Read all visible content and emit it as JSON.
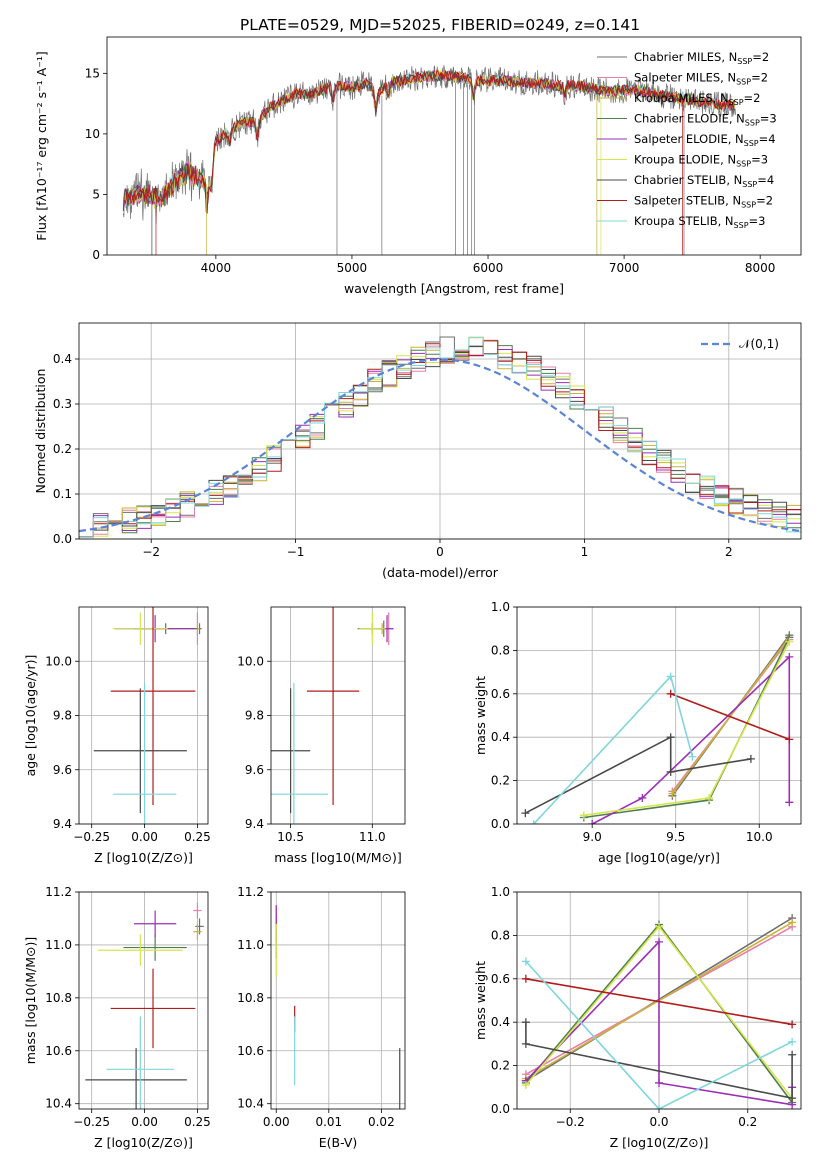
{
  "colors": {
    "Chabrier MILES": "#6f6f6f",
    "Salpeter MILES": "#e87fa8",
    "Kroupa MILES": "#c8b23a",
    "Chabrier ELODIE": "#4f7f4f",
    "Salpeter ELODIE": "#9b2fb5",
    "Kroupa ELODIE": "#d4e64c",
    "Chabrier STELIB": "#4a4a4a",
    "Salpeter STELIB": "#b01d1d",
    "Kroupa STELIB": "#7fd6dc",
    "gaussian": "#5b84d6",
    "orange": "#e0782a"
  },
  "chart_data": [
    {
      "id": "spectrum",
      "type": "line",
      "title": "PLATE=0529, MJD=52025, FIBERID=0249, z=0.141",
      "xlabel": "wavelength [Angstrom, rest frame]",
      "ylabel": "Flux [fλ10⁻¹⁷ erg cm⁻² s⁻¹ A⁻¹]",
      "xlim": [
        3200,
        8300
      ],
      "ylim": [
        0,
        18
      ],
      "xticks": [
        4000,
        5000,
        6000,
        7000,
        8000
      ],
      "yticks": [
        0,
        5,
        10,
        15
      ],
      "grid": false,
      "legend_position": "top-right",
      "legend": [
        {
          "name": "Chabrier MILES",
          "n": "2"
        },
        {
          "name": "Salpeter MILES",
          "n": "2"
        },
        {
          "name": "Kroupa MILES",
          "n": "2"
        },
        {
          "name": "Chabrier ELODIE",
          "n": "3"
        },
        {
          "name": "Salpeter ELODIE",
          "n": "4"
        },
        {
          "name": "Kroupa ELODIE",
          "n": "3"
        },
        {
          "name": "Chabrier STELIB",
          "n": "4"
        },
        {
          "name": "Salpeter STELIB",
          "n": "2"
        },
        {
          "name": "Kroupa STELIB",
          "n": "3"
        }
      ],
      "continuum": [
        [
          3300,
          4.6
        ],
        [
          3400,
          4.9
        ],
        [
          3500,
          5.0
        ],
        [
          3600,
          4.7
        ],
        [
          3700,
          6.0
        ],
        [
          3800,
          6.9
        ],
        [
          3900,
          6.2
        ],
        [
          3950,
          6.5
        ],
        [
          4000,
          9.4
        ],
        [
          4100,
          10.3
        ],
        [
          4200,
          10.9
        ],
        [
          4300,
          11.0
        ],
        [
          4400,
          12.2
        ],
        [
          4500,
          12.8
        ],
        [
          4600,
          13.3
        ],
        [
          4700,
          13.3
        ],
        [
          4800,
          13.7
        ],
        [
          4900,
          14.0
        ],
        [
          5000,
          13.8
        ],
        [
          5100,
          14.2
        ],
        [
          5200,
          13.5
        ],
        [
          5300,
          14.3
        ],
        [
          5400,
          14.5
        ],
        [
          5500,
          14.7
        ],
        [
          5600,
          14.8
        ],
        [
          5700,
          14.8
        ],
        [
          5800,
          14.7
        ],
        [
          5900,
          14.4
        ],
        [
          6000,
          14.4
        ],
        [
          6100,
          14.4
        ],
        [
          6200,
          14.3
        ],
        [
          6300,
          14.2
        ],
        [
          6400,
          14.2
        ],
        [
          6500,
          14.0
        ],
        [
          6600,
          14.0
        ],
        [
          6700,
          13.9
        ],
        [
          6800,
          13.7
        ],
        [
          6900,
          13.5
        ],
        [
          7000,
          13.6
        ],
        [
          7100,
          13.6
        ],
        [
          7200,
          13.4
        ],
        [
          7300,
          13.1
        ],
        [
          7400,
          12.9
        ],
        [
          7500,
          12.8
        ],
        [
          7600,
          12.6
        ],
        [
          7700,
          12.4
        ],
        [
          7800,
          12.4
        ]
      ]
    },
    {
      "id": "residuals",
      "type": "line",
      "xlabel": "(data-model)/error",
      "ylabel": "Normed distribution",
      "xlim": [
        -2.5,
        2.5
      ],
      "ylim": [
        0,
        0.48
      ],
      "xticks": [
        -2,
        -1,
        0,
        1,
        2
      ],
      "yticks": [
        0.0,
        0.1,
        0.2,
        0.3,
        0.4
      ],
      "grid": true,
      "legend_position": "top-right",
      "legend": [
        "𝒩(0,1)"
      ]
    },
    {
      "id": "age_vs_Z",
      "type": "scatter",
      "xlabel": "Z [log10(Z/Z⊙)]",
      "ylabel": "age  [log10(age/yr)]",
      "xlim": [
        -0.31,
        0.3
      ],
      "ylim": [
        9.4,
        10.2
      ],
      "xticks": [
        -0.25,
        0.0,
        0.25
      ],
      "yticks": [
        9.4,
        9.6,
        9.8,
        10.0
      ],
      "grid": true,
      "points": [
        {
          "series": "Chabrier MILES",
          "x": 0.26,
          "y": 10.12,
          "xerr": 0.01,
          "yerr": 0.02
        },
        {
          "series": "Salpeter MILES",
          "x": 0.25,
          "y": 10.12,
          "xerr": 0.01,
          "yerr": 0.06
        },
        {
          "series": "Kroupa MILES",
          "x": 0.25,
          "y": 10.12,
          "xerr": 0.01,
          "yerr": 0.02
        },
        {
          "series": "Chabrier ELODIE",
          "x": 0.1,
          "y": 10.12,
          "xerr": 0.15,
          "yerr": 0.02
        },
        {
          "series": "Salpeter ELODIE",
          "x": 0.05,
          "y": 10.12,
          "xerr": 0.19,
          "yerr": 0.05
        },
        {
          "series": "Kroupa ELODIE",
          "x": -0.02,
          "y": 10.12,
          "xerr": 0.13,
          "yerr": 0.06
        },
        {
          "series": "Chabrier STELIB",
          "x": -0.02,
          "y": 9.67,
          "xerr": 0.22,
          "yerr": 0.23
        },
        {
          "series": "Salpeter STELIB",
          "x": 0.04,
          "y": 9.89,
          "xerr": 0.2,
          "yerr": 0.42
        },
        {
          "series": "Kroupa STELIB",
          "x": 0.0,
          "y": 9.51,
          "xerr": 0.15,
          "yerr": 0.41
        }
      ]
    },
    {
      "id": "age_vs_mass",
      "type": "scatter",
      "xlabel": "mass [log10(M/M⊙)]",
      "ylabel": "",
      "xlim": [
        10.38,
        11.2
      ],
      "ylim": [
        9.4,
        10.2
      ],
      "xticks": [
        10.5,
        11.0
      ],
      "yticks": [
        9.4,
        9.6,
        9.8,
        10.0
      ],
      "grid": true,
      "points": [
        {
          "series": "Chabrier MILES",
          "x": 11.07,
          "y": 10.12,
          "xerr": 0.03,
          "yerr": 0.03
        },
        {
          "series": "Salpeter MILES",
          "x": 11.1,
          "y": 10.12,
          "xerr": 0.03,
          "yerr": 0.06
        },
        {
          "series": "Kroupa MILES",
          "x": 11.06,
          "y": 10.12,
          "xerr": 0.03,
          "yerr": 0.02
        },
        {
          "series": "Chabrier ELODIE",
          "x": 11.0,
          "y": 10.12,
          "xerr": 0.09,
          "yerr": 0.02
        },
        {
          "series": "Salpeter ELODIE",
          "x": 11.09,
          "y": 10.12,
          "xerr": 0.04,
          "yerr": 0.05
        },
        {
          "series": "Kroupa ELODIE",
          "x": 11.0,
          "y": 10.12,
          "xerr": 0.08,
          "yerr": 0.06
        },
        {
          "series": "Chabrier STELIB",
          "x": 10.5,
          "y": 9.67,
          "xerr": 0.12,
          "yerr": 0.23
        },
        {
          "series": "Salpeter STELIB",
          "x": 10.76,
          "y": 9.89,
          "xerr": 0.16,
          "yerr": 0.42
        },
        {
          "series": "Kroupa STELIB",
          "x": 10.52,
          "y": 9.51,
          "xerr": 0.21,
          "yerr": 0.41
        }
      ]
    },
    {
      "id": "weight_vs_age",
      "type": "line",
      "xlabel": "age  [log10(age/yr)]",
      "ylabel": "mass weight",
      "xlim": [
        8.55,
        10.25
      ],
      "ylim": [
        0,
        1
      ],
      "xticks": [
        9.0,
        9.5,
        10.0
      ],
      "yticks": [
        0.0,
        0.2,
        0.4,
        0.6,
        0.8,
        1.0
      ],
      "grid": true,
      "series": [
        {
          "name": "Chabrier MILES",
          "x": [
            9.48,
            10.18
          ],
          "y": [
            0.13,
            0.87
          ]
        },
        {
          "name": "Salpeter MILES",
          "x": [
            9.48,
            10.18
          ],
          "y": [
            0.15,
            0.85
          ]
        },
        {
          "name": "Kroupa MILES",
          "x": [
            9.48,
            10.18
          ],
          "y": [
            0.14,
            0.86
          ]
        },
        {
          "name": "Chabrier ELODIE",
          "x": [
            8.95,
            9.7,
            10.18
          ],
          "y": [
            0.03,
            0.11,
            0.86
          ]
        },
        {
          "name": "Salpeter ELODIE",
          "x": [
            9.0,
            9.3,
            10.18,
            10.18
          ],
          "y": [
            0.0,
            0.12,
            0.77,
            0.1
          ]
        },
        {
          "name": "Kroupa ELODIE",
          "x": [
            8.95,
            9.7,
            10.18
          ],
          "y": [
            0.04,
            0.12,
            0.84
          ]
        },
        {
          "name": "Chabrier STELIB",
          "x": [
            8.6,
            9.47,
            9.47,
            9.95
          ],
          "y": [
            0.05,
            0.4,
            0.24,
            0.3
          ]
        },
        {
          "name": "Salpeter STELIB",
          "x": [
            9.47,
            10.18
          ],
          "y": [
            0.6,
            0.39
          ]
        },
        {
          "name": "Kroupa STELIB",
          "x": [
            8.65,
            9.47,
            9.6
          ],
          "y": [
            0.0,
            0.68,
            0.31
          ]
        }
      ]
    },
    {
      "id": "mass_vs_Z",
      "type": "scatter",
      "xlabel": "Z [log10(Z/Z⊙)]",
      "ylabel": "mass [log10(M/M⊙)]",
      "xlim": [
        -0.31,
        0.3
      ],
      "ylim": [
        10.38,
        11.2
      ],
      "xticks": [
        -0.25,
        0.0,
        0.25
      ],
      "yticks": [
        10.4,
        10.6,
        10.8,
        11.0,
        11.2
      ],
      "grid": true,
      "points": [
        {
          "series": "Chabrier MILES",
          "x": 0.26,
          "y": 11.07,
          "xerr": 0.02,
          "yerr": 0.03
        },
        {
          "series": "Salpeter MILES",
          "x": 0.25,
          "y": 11.13,
          "xerr": 0.02,
          "yerr": 0.03
        },
        {
          "series": "Kroupa MILES",
          "x": 0.25,
          "y": 11.05,
          "xerr": 0.02,
          "yerr": 0.03
        },
        {
          "series": "Chabrier ELODIE",
          "x": 0.05,
          "y": 10.99,
          "xerr": 0.15,
          "yerr": 0.05
        },
        {
          "series": "Salpeter ELODIE",
          "x": 0.05,
          "y": 11.08,
          "xerr": 0.1,
          "yerr": 0.05
        },
        {
          "series": "Kroupa ELODIE",
          "x": -0.02,
          "y": 10.98,
          "xerr": 0.2,
          "yerr": 0.06
        },
        {
          "series": "Chabrier STELIB",
          "x": -0.04,
          "y": 10.49,
          "xerr": 0.24,
          "yerr": 0.12
        },
        {
          "series": "Salpeter STELIB",
          "x": 0.04,
          "y": 10.76,
          "xerr": 0.2,
          "yerr": 0.15
        },
        {
          "series": "Kroupa STELIB",
          "x": -0.02,
          "y": 10.53,
          "xerr": 0.16,
          "yerr": 0.2
        }
      ]
    },
    {
      "id": "mass_vs_ebv",
      "type": "scatter",
      "xlabel": "E(B-V)",
      "ylabel": "",
      "xlim": [
        -0.001,
        0.0245
      ],
      "ylim": [
        10.38,
        11.2
      ],
      "xticks": [
        0.0,
        0.01,
        0.02
      ],
      "yticks": [
        10.4,
        10.6,
        10.8,
        11.0,
        11.2
      ],
      "grid": true,
      "points": [
        {
          "series": "Chabrier MILES",
          "x": 0.0,
          "y": 11.07,
          "yerr": 0.03
        },
        {
          "series": "Salpeter MILES",
          "x": 0.0,
          "y": 11.1,
          "yerr": 0.05
        },
        {
          "series": "Kroupa MILES",
          "x": 0.0,
          "y": 11.05,
          "yerr": 0.03
        },
        {
          "series": "Chabrier ELODIE",
          "x": 0.0,
          "y": 11.0,
          "yerr": 0.05
        },
        {
          "series": "Salpeter ELODIE",
          "x": 0.0,
          "y": 11.08,
          "yerr": 0.07
        },
        {
          "series": "Kroupa ELODIE",
          "x": 0.0,
          "y": 10.98,
          "yerr": 0.1
        },
        {
          "series": "Chabrier STELIB",
          "x": 0.0235,
          "y": 10.49,
          "yerr": 0.12
        },
        {
          "series": "Salpeter STELIB",
          "x": 0.0035,
          "y": 10.72,
          "yerr": 0.05
        },
        {
          "series": "Kroupa STELIB",
          "x": 0.0035,
          "y": 10.6,
          "yerr": 0.13
        }
      ]
    },
    {
      "id": "weight_vs_Z",
      "type": "line",
      "xlabel": "Z [log10(Z/Z⊙)]",
      "ylabel": "mass weight",
      "xlim": [
        -0.32,
        0.32
      ],
      "ylim": [
        0,
        1
      ],
      "xticks": [
        -0.2,
        0.0,
        0.2
      ],
      "yticks": [
        0.0,
        0.2,
        0.4,
        0.6,
        0.8,
        1.0
      ],
      "grid": true,
      "series": [
        {
          "name": "Chabrier MILES",
          "x": [
            -0.3,
            0.3
          ],
          "y": [
            0.13,
            0.88
          ]
        },
        {
          "name": "Salpeter MILES",
          "x": [
            -0.3,
            0.3
          ],
          "y": [
            0.16,
            0.84
          ]
        },
        {
          "name": "Kroupa MILES",
          "x": [
            -0.3,
            0.3
          ],
          "y": [
            0.14,
            0.86
          ]
        },
        {
          "name": "Chabrier ELODIE",
          "x": [
            -0.3,
            0.0,
            0.3
          ],
          "y": [
            0.12,
            0.85,
            0.03
          ]
        },
        {
          "name": "Salpeter ELODIE",
          "x": [
            -0.3,
            0.0,
            0.0,
            0.3,
            0.3
          ],
          "y": [
            0.13,
            0.77,
            0.12,
            0.02,
            0.1
          ]
        },
        {
          "name": "Kroupa ELODIE",
          "x": [
            -0.3,
            0.0,
            0.3
          ],
          "y": [
            0.11,
            0.84,
            0.05
          ]
        },
        {
          "name": "Chabrier STELIB",
          "x": [
            -0.3,
            -0.3,
            0.3,
            0.3
          ],
          "y": [
            0.4,
            0.3,
            0.05,
            0.25
          ]
        },
        {
          "name": "Salpeter STELIB",
          "x": [
            -0.3,
            0.3
          ],
          "y": [
            0.6,
            0.39
          ]
        },
        {
          "name": "Kroupa STELIB",
          "x": [
            -0.3,
            0.0,
            0.3
          ],
          "y": [
            0.68,
            0.0,
            0.31
          ]
        }
      ]
    }
  ]
}
